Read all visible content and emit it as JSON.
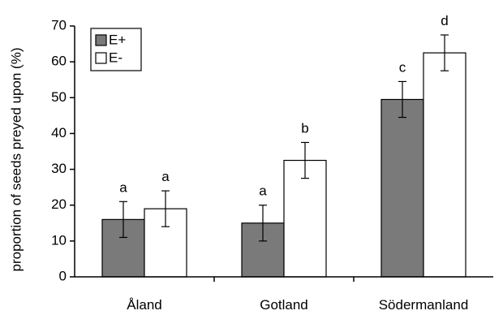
{
  "chart_data": {
    "type": "bar",
    "ylabel": "proportion of seeds preyed upon (%)",
    "xlabel": "",
    "ylim": [
      0,
      70
    ],
    "yticks": [
      0,
      10,
      20,
      30,
      40,
      50,
      60,
      70
    ],
    "grid": false,
    "legend_position": "top-left",
    "categories": [
      "Åland",
      "Gotland",
      "Södermanland"
    ],
    "series": [
      {
        "name": "E+",
        "color": "#7a7a7a",
        "values": [
          16,
          15,
          49.5
        ],
        "errors": [
          5,
          5,
          5
        ],
        "sig_labels": [
          "a",
          "a",
          "c"
        ]
      },
      {
        "name": "E-",
        "color": "#ffffff",
        "values": [
          19,
          32.5,
          62.5
        ],
        "errors": [
          5,
          5,
          5
        ],
        "sig_labels": [
          "a",
          "b",
          "d"
        ]
      }
    ]
  }
}
